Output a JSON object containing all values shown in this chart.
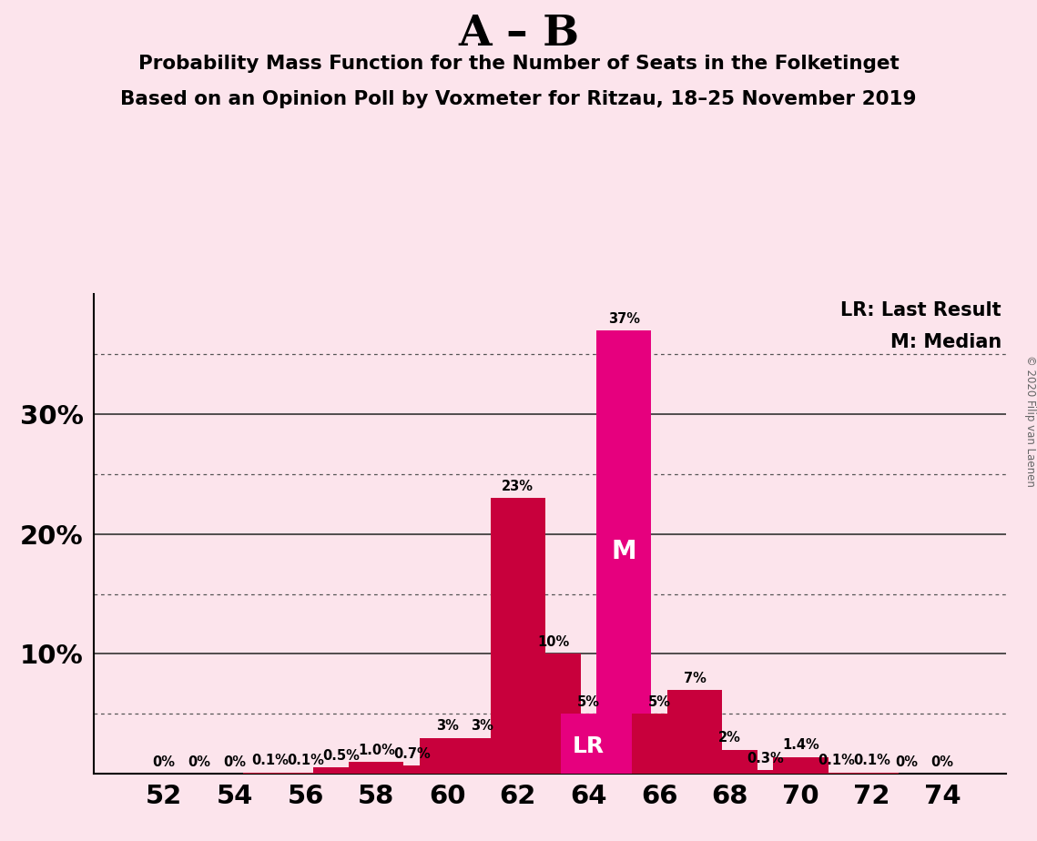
{
  "title_main": "A – B",
  "title_sub1": "Probability Mass Function for the Number of Seats in the Folketinget",
  "title_sub2": "Based on an Opinion Poll by Voxmeter for Ritzau, 18–25 November 2019",
  "copyright": "© 2020 Filip van Laenen",
  "seats": [
    52,
    53,
    54,
    55,
    56,
    57,
    58,
    59,
    60,
    61,
    62,
    63,
    64,
    65,
    66,
    67,
    68,
    69,
    70,
    71,
    72,
    73,
    74
  ],
  "values": [
    0.0,
    0.0,
    0.0,
    0.1,
    0.1,
    0.5,
    1.0,
    0.7,
    3.0,
    3.0,
    23.0,
    10.0,
    5.0,
    37.0,
    5.0,
    7.0,
    2.0,
    0.3,
    1.4,
    0.1,
    0.1,
    0.0,
    0.0
  ],
  "labels": [
    "0%",
    "0%",
    "0%",
    "0.1%",
    "0.1%",
    "0.5%",
    "1.0%",
    "0.7%",
    "3%",
    "3%",
    "23%",
    "10%",
    "5%",
    "37%",
    "5%",
    "7%",
    "2%",
    "0.3%",
    "1.4%",
    "0.1%",
    "0.1%",
    "0%",
    "0%"
  ],
  "median_seat": 65,
  "lr_seat": 64,
  "crimson_color": "#c8003c",
  "magenta_color": "#e6007e",
  "background_color": "#fce4ec",
  "grid_color": "#333333",
  "grid_dotted_color": "#555555",
  "xlim_left": 50.0,
  "xlim_right": 75.8,
  "ylim": [
    0,
    40
  ],
  "legend_lr": "LR: Last Result",
  "legend_m": "M: Median",
  "bar_width": 1.55
}
